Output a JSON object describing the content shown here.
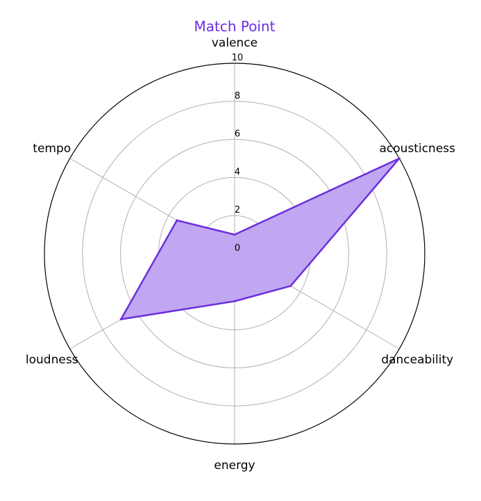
{
  "chart_data": {
    "type": "radar",
    "title": "Match Point",
    "axes": [
      "valence",
      "acousticness",
      "danceability",
      "energy",
      "loudness",
      "tempo"
    ],
    "series": [
      {
        "values": [
          1.0,
          10.0,
          3.4,
          2.5,
          6.9,
          3.5
        ]
      }
    ],
    "rlim": [
      0,
      10
    ],
    "r_ticks": [
      "0",
      "2",
      "4",
      "6",
      "8",
      "10"
    ],
    "grid": true,
    "colors": {
      "title": "#6a2fdc",
      "line": "#6a2fdc",
      "fill": "#c1a6f1",
      "grid": "#b0b0b0",
      "frame": "#000000"
    }
  }
}
